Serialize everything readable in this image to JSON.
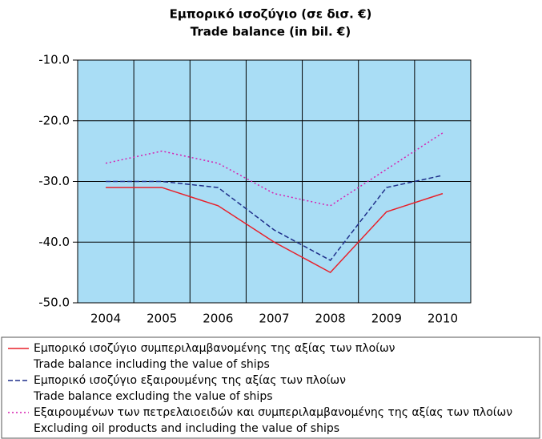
{
  "chart_data": {
    "type": "line",
    "title": "Εμπορικό ισοζύγιο (σε δισ. €)",
    "subtitle": "Trade balance (in bil. €)",
    "categories": [
      "2004",
      "2005",
      "2006",
      "2007",
      "2008",
      "2009",
      "2010"
    ],
    "ylim": [
      -50,
      -10
    ],
    "yticks": [
      {
        "value": -10,
        "label": "-10.0"
      },
      {
        "value": -20,
        "label": "-20.0"
      },
      {
        "value": -30,
        "label": "-30.0"
      },
      {
        "value": -40,
        "label": "-40.0"
      },
      {
        "value": -50,
        "label": "-50.0"
      }
    ],
    "grid": true,
    "background": "#a9ddf5",
    "series": [
      {
        "name": "Εμπορικό ισοζύγιο συμπεριλαμβανομένης της αξίας των πλοίων",
        "name_en": "Trade balance including the value of ships",
        "color": "#e8202a",
        "dash": "solid",
        "values": [
          -31,
          -31,
          -34,
          -40,
          -45,
          -35,
          -32
        ]
      },
      {
        "name": "Εμπορικό ισοζύγιο εξαιρουμένης της αξίας των πλοίων",
        "name_en": "Trade balance excluding the value of ships",
        "color": "#1f2f8a",
        "dash": "dashed",
        "values": [
          -30,
          -30,
          -31,
          -38,
          -43,
          -31,
          -29
        ]
      },
      {
        "name": "Εξαιρουμένων των πετρελαιοειδών και συμπεριλαμβανομένης της αξίας των πλοίων",
        "name_en": "Excluding oil products and including the value of ships",
        "color": "#d61fb0",
        "dash": "dotted",
        "values": [
          -27,
          -25,
          -27,
          -32,
          -34,
          -28,
          -22
        ]
      }
    ]
  }
}
